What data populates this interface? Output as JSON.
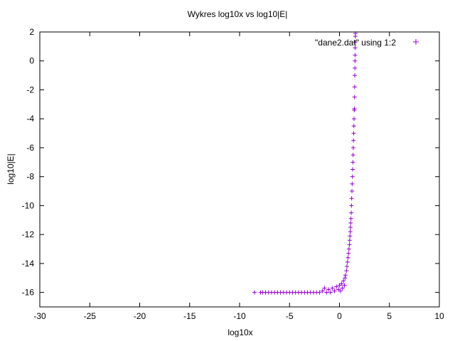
{
  "chart_data": {
    "type": "scatter",
    "title": "Wykres log10x vs log10|E|",
    "xlabel": "log10x",
    "ylabel": "log10|E|",
    "xlim": [
      -30,
      10
    ],
    "ylim": [
      -17,
      2
    ],
    "xticks": [
      -30,
      -25,
      -20,
      -15,
      -10,
      -5,
      0,
      5,
      10
    ],
    "yticks": [
      2,
      0,
      -2,
      -4,
      -6,
      -8,
      -10,
      -12,
      -14,
      -16
    ],
    "xtick_labels": [
      "-30",
      "-25",
      "-20",
      "-15",
      "-10",
      "-5",
      "0",
      "5",
      "10"
    ],
    "ytick_labels": [
      "2",
      "0",
      "-2",
      "-4",
      "-6",
      "-8",
      "-10",
      "-12",
      "-14",
      "-16"
    ],
    "grid": false,
    "legend_position": "top-right",
    "marker_color": "#9400d3",
    "series": [
      {
        "name": "\"dane2.dat\" using 1:2",
        "points": [
          [
            -8.5,
            -16.0
          ],
          [
            -7.9,
            -16.0
          ],
          [
            -7.7,
            -16.0
          ],
          [
            -7.4,
            -16.0
          ],
          [
            -7.1,
            -16.0
          ],
          [
            -6.8,
            -16.0
          ],
          [
            -6.5,
            -16.0
          ],
          [
            -6.2,
            -16.0
          ],
          [
            -5.9,
            -16.0
          ],
          [
            -5.6,
            -16.0
          ],
          [
            -5.3,
            -16.0
          ],
          [
            -5.0,
            -16.0
          ],
          [
            -4.7,
            -16.0
          ],
          [
            -4.4,
            -16.0
          ],
          [
            -4.1,
            -16.0
          ],
          [
            -3.8,
            -16.0
          ],
          [
            -3.5,
            -16.0
          ],
          [
            -3.2,
            -16.0
          ],
          [
            -2.9,
            -16.0
          ],
          [
            -2.6,
            -16.0
          ],
          [
            -2.3,
            -16.0
          ],
          [
            -2.0,
            -16.0
          ],
          [
            -1.7,
            -15.9
          ],
          [
            -1.5,
            -15.7
          ],
          [
            -1.3,
            -16.0
          ],
          [
            -1.1,
            -15.8
          ],
          [
            -0.9,
            -16.0
          ],
          [
            -0.7,
            -15.7
          ],
          [
            -0.5,
            -15.9
          ],
          [
            -0.3,
            -15.6
          ],
          [
            -0.1,
            -15.8
          ],
          [
            0.0,
            -15.5
          ],
          [
            0.1,
            -15.9
          ],
          [
            0.2,
            -15.4
          ],
          [
            0.3,
            -15.7
          ],
          [
            0.4,
            -15.2
          ],
          [
            0.5,
            -15.5
          ],
          [
            0.55,
            -15.0
          ],
          [
            0.6,
            -14.8
          ],
          [
            0.7,
            -14.5
          ],
          [
            0.75,
            -14.2
          ],
          [
            0.8,
            -13.9
          ],
          [
            0.85,
            -13.6
          ],
          [
            0.9,
            -13.3
          ],
          [
            0.95,
            -13.0
          ],
          [
            1.0,
            -12.7
          ],
          [
            1.02,
            -12.4
          ],
          [
            1.05,
            -12.1
          ],
          [
            1.08,
            -11.8
          ],
          [
            1.1,
            -11.5
          ],
          [
            1.12,
            -11.2
          ],
          [
            1.15,
            -10.9
          ],
          [
            1.18,
            -10.5
          ],
          [
            1.2,
            -10.0
          ],
          [
            1.22,
            -9.5
          ],
          [
            1.25,
            -9.0
          ],
          [
            1.27,
            -8.5
          ],
          [
            1.3,
            -8.0
          ],
          [
            1.32,
            -7.5
          ],
          [
            1.34,
            -7.0
          ],
          [
            1.36,
            -6.5
          ],
          [
            1.38,
            -6.0
          ],
          [
            1.4,
            -5.5
          ],
          [
            1.42,
            -5.0
          ],
          [
            1.44,
            -4.5
          ],
          [
            1.46,
            -4.0
          ],
          [
            1.48,
            -3.4
          ],
          [
            1.5,
            -3.3
          ],
          [
            1.51,
            -2.5
          ],
          [
            1.52,
            -1.8
          ],
          [
            1.53,
            -1.0
          ],
          [
            1.54,
            -0.5
          ],
          [
            1.55,
            0.0
          ],
          [
            1.56,
            0.4
          ],
          [
            1.57,
            0.9
          ],
          [
            1.58,
            1.3
          ],
          [
            1.59,
            1.7
          ],
          [
            1.6,
            1.9
          ]
        ]
      }
    ]
  }
}
